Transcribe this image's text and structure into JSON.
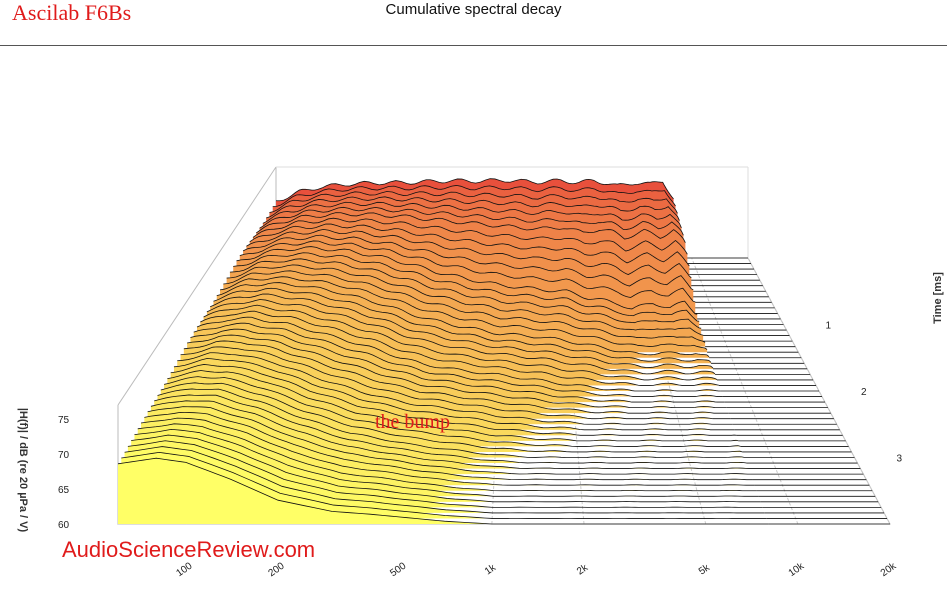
{
  "header": {
    "brand": "Ascilab F6Bs",
    "title": "Cumulative spectral decay"
  },
  "watermark": "AudioScienceReview.com",
  "annotation": "the bump",
  "colors": {
    "brand_red": "#e01b1b",
    "front_fill": "#ffff66",
    "back_fill": "#e8503c"
  },
  "chart_data": {
    "type": "waterfall",
    "title": "Cumulative spectral decay",
    "xlabel": "",
    "ylabel": "|H(f)| / dB (re 20 µPa / V)",
    "zlabel": "Time [ms]",
    "x_scale": "log",
    "xlim": [
      60,
      20000
    ],
    "x_ticks": [
      "100",
      "200",
      "500",
      "1k",
      "2k",
      "5k",
      "10k",
      "20k"
    ],
    "y_ticks": [
      "60",
      "65",
      "70",
      "75"
    ],
    "ylim": [
      60,
      77
    ],
    "z_ticks": [
      "1",
      "2",
      "3"
    ],
    "zlim": [
      0,
      4
    ],
    "series": [
      {
        "time_ms": 0.0,
        "freq": [
          60,
          80,
          100,
          140,
          200,
          300,
          400,
          500,
          700,
          1000,
          1500,
          2000,
          2500,
          3000,
          3500,
          4000,
          5000,
          6000,
          7000,
          8000
        ],
        "spl_db": [
          72.5,
          74.5,
          75.5,
          76.2,
          76.5,
          76.6,
          76.8,
          77.0,
          76.9,
          77.1,
          76.7,
          77.0,
          76.6,
          77.0,
          76.5,
          75.8,
          76.6,
          76.2,
          77.0,
          73.0
        ]
      },
      {
        "time_ms": 0.5,
        "freq": [
          60,
          80,
          100,
          140,
          200,
          300,
          400,
          500,
          700,
          1000,
          1500,
          2000,
          2500,
          3000,
          3500,
          4000,
          5000,
          6000,
          7000,
          8000
        ],
        "spl_db": [
          72.3,
          74.3,
          75.2,
          75.8,
          75.9,
          75.5,
          75.0,
          74.6,
          74.0,
          73.4,
          72.8,
          73.2,
          72.0,
          72.8,
          72.2,
          71.0,
          72.4,
          71.2,
          72.6,
          70.0
        ]
      },
      {
        "time_ms": 1.0,
        "freq": [
          60,
          80,
          100,
          140,
          200,
          300,
          400,
          500,
          700,
          1000,
          1500,
          2000,
          2500,
          3000,
          3500,
          4000,
          5000,
          6000,
          7000,
          8000
        ],
        "spl_db": [
          72.0,
          73.8,
          74.6,
          74.8,
          74.2,
          72.8,
          71.4,
          70.2,
          68.8,
          67.6,
          66.8,
          66.4,
          65.2,
          64.6,
          64.0,
          63.0,
          64.2,
          63.2,
          64.4,
          62.0
        ]
      },
      {
        "time_ms": 1.5,
        "freq": [
          60,
          80,
          100,
          140,
          200,
          300,
          400,
          500,
          700,
          1000,
          1500,
          2000,
          2500,
          3000,
          3500,
          4000,
          5000,
          6000,
          7000,
          8000
        ],
        "spl_db": [
          71.6,
          73.2,
          73.6,
          73.2,
          72.0,
          70.0,
          68.2,
          67.0,
          65.6,
          64.4,
          63.8,
          63.0,
          62.2,
          61.6,
          61.0,
          60.6,
          61.0,
          60.6,
          61.0,
          60.2
        ]
      },
      {
        "time_ms": 2.0,
        "freq": [
          60,
          80,
          100,
          140,
          200,
          300,
          400,
          500,
          700,
          1000,
          1500,
          2000,
          2500,
          3000,
          3500,
          4000,
          5000,
          6000,
          7000,
          8000
        ],
        "spl_db": [
          71.0,
          72.4,
          72.6,
          71.6,
          69.8,
          67.6,
          65.8,
          64.6,
          63.6,
          62.8,
          61.8,
          61.0,
          60.6,
          60.2,
          60.0,
          60.0,
          60.0,
          60.0,
          60.0,
          60.0
        ]
      },
      {
        "time_ms": 2.5,
        "freq": [
          60,
          80,
          100,
          140,
          200,
          300,
          400,
          500,
          700,
          1000,
          1500,
          2000,
          2500,
          3000,
          3500,
          4000,
          5000,
          6000,
          7000,
          8000
        ],
        "spl_db": [
          70.4,
          71.6,
          71.6,
          70.2,
          67.8,
          65.4,
          64.0,
          63.2,
          62.4,
          61.4,
          60.6,
          60.2,
          60.0,
          60.0,
          60.0,
          60.0,
          60.0,
          60.0,
          60.0,
          60.0
        ]
      },
      {
        "time_ms": 3.0,
        "freq": [
          60,
          80,
          100,
          140,
          200,
          300,
          400,
          500,
          700,
          1000,
          1500,
          2000,
          2500,
          3000,
          3500,
          4000,
          5000,
          6000,
          7000,
          8000
        ],
        "spl_db": [
          69.8,
          70.8,
          70.6,
          68.8,
          66.2,
          63.8,
          62.8,
          62.0,
          61.2,
          60.4,
          60.0,
          60.0,
          60.0,
          60.0,
          60.0,
          60.0,
          60.0,
          60.0,
          60.0,
          60.0
        ]
      },
      {
        "time_ms": 3.5,
        "freq": [
          60,
          80,
          100,
          140,
          200,
          300,
          400,
          500,
          700,
          1000,
          1500,
          2000,
          2500,
          3000,
          3500,
          4000,
          5000,
          6000,
          7000,
          8000
        ],
        "spl_db": [
          69.2,
          70.0,
          69.6,
          67.6,
          64.8,
          62.6,
          62.0,
          61.4,
          60.6,
          60.0,
          60.0,
          60.0,
          60.0,
          60.0,
          60.0,
          60.0,
          60.0,
          60.0,
          60.0,
          60.0
        ]
      },
      {
        "time_ms": 4.0,
        "freq": [
          60,
          80,
          100,
          140,
          200,
          300,
          400,
          500,
          700,
          1000,
          1500,
          2000,
          2500,
          3000,
          3500,
          4000,
          5000,
          6000,
          7000,
          8000
        ],
        "spl_db": [
          68.6,
          69.4,
          68.8,
          66.4,
          63.4,
          61.8,
          61.4,
          61.0,
          60.4,
          60.0,
          60.0,
          60.0,
          60.0,
          60.0,
          60.0,
          60.0,
          60.0,
          60.0,
          60.0,
          60.0
        ]
      }
    ]
  }
}
